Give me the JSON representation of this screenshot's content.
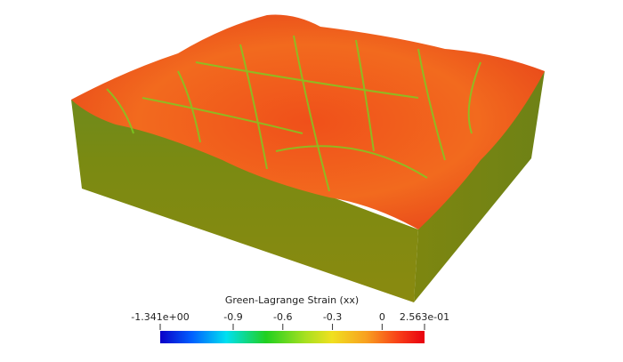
{
  "colorbar": {
    "title": "Green-Lagrange Strain (xx)",
    "range": [
      -1.341,
      0.2563
    ],
    "ticks": [
      {
        "value": -1.341,
        "label": "-1.341e+00"
      },
      -0.9,
      -0.6,
      -0.3,
      0,
      {
        "value": 0.2563,
        "label": "2.563e-01"
      }
    ]
  }
}
